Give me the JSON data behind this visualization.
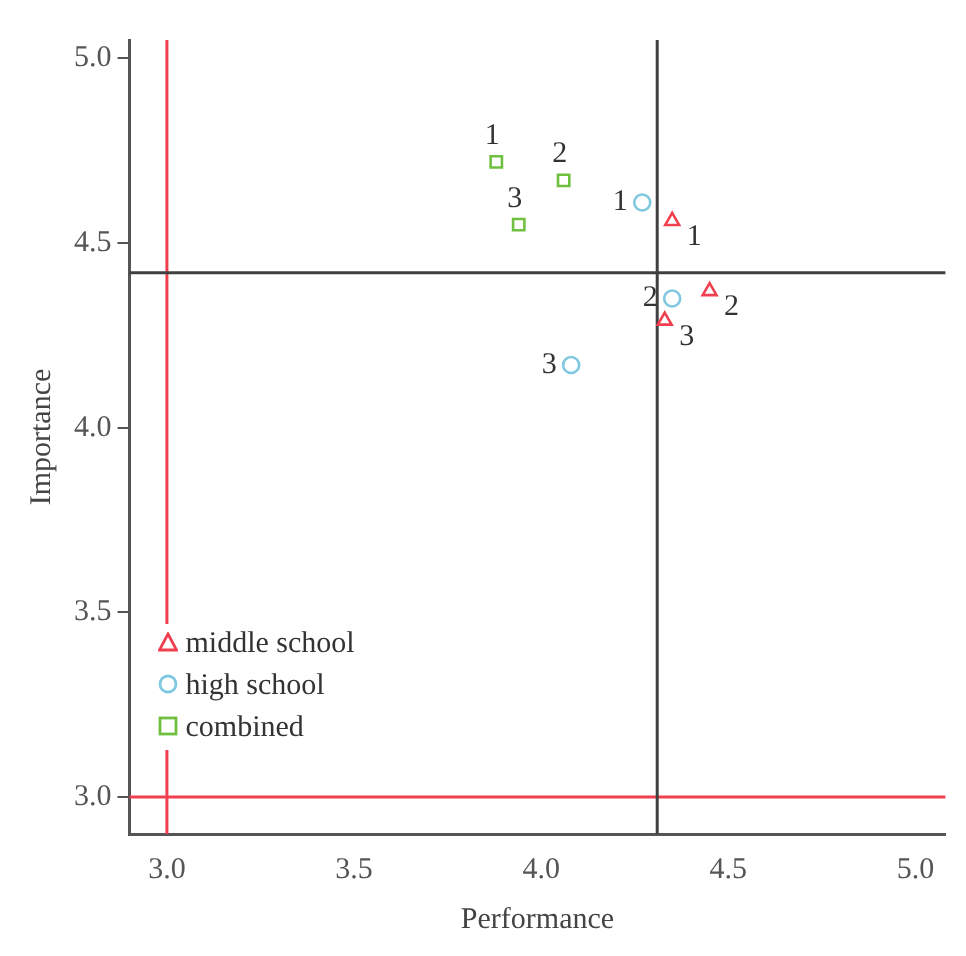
{
  "chart_data": {
    "type": "scatter",
    "xlabel": "Performance",
    "ylabel": "Importance",
    "xlim": [
      2.9,
      5.08
    ],
    "ylim": [
      2.9,
      5.05
    ],
    "xticks": [
      {
        "value": 3,
        "label": "3.0"
      },
      3.5,
      {
        "value": 4,
        "label": "4.0"
      },
      4.5,
      {
        "value": 5,
        "label": "5.0"
      }
    ],
    "yticks": [
      {
        "value": 3,
        "label": "3.0"
      },
      3.5,
      {
        "value": 4,
        "label": "4.0"
      },
      4.5,
      {
        "value": 5,
        "label": "5.0"
      }
    ],
    "series": [
      {
        "name": "middle school",
        "color": "#f04050",
        "marker": "triangle",
        "x": [
          4.35,
          4.45,
          4.33
        ],
        "values": [
          4.56,
          4.37,
          4.29
        ]
      },
      {
        "name": "high school",
        "color": "#80c8e0",
        "marker": "circle",
        "x": [
          4.27,
          4.35,
          4.08
        ],
        "values": [
          4.61,
          4.35,
          4.17
        ]
      },
      {
        "name": "combined",
        "color": "#70c040",
        "marker": "square",
        "x": [
          3.88,
          4.06,
          3.94
        ],
        "values": [
          4.72,
          4.67,
          4.55
        ]
      }
    ],
    "ref_lines": [
      {
        "axis": "x",
        "value": 3.0,
        "color": "#f04050"
      },
      {
        "axis": "y",
        "value": 3.0,
        "color": "#f04050"
      },
      {
        "axis": "x",
        "value": 4.31,
        "color": "#404040"
      },
      {
        "axis": "y",
        "value": 4.42,
        "color": "#404040"
      }
    ],
    "annotations": [
      {
        "text": "1",
        "x": 4.35,
        "y": 4.56
      },
      {
        "text": "2",
        "x": 4.45,
        "y": 4.37
      },
      {
        "text": "3",
        "x": 4.33,
        "y": 4.29
      },
      {
        "text": "1",
        "x": 4.27,
        "y": 4.61
      },
      {
        "text": "2",
        "x": 4.35,
        "y": 4.35
      },
      {
        "text": "3",
        "x": 4.08,
        "y": 4.17
      },
      {
        "text": "1",
        "x": 3.88,
        "y": 4.72
      },
      {
        "text": "2",
        "x": 4.06,
        "y": 4.67
      },
      {
        "text": "3",
        "x": 3.94,
        "y": 4.55
      }
    ],
    "grid": false,
    "legend": "bottom left"
  }
}
